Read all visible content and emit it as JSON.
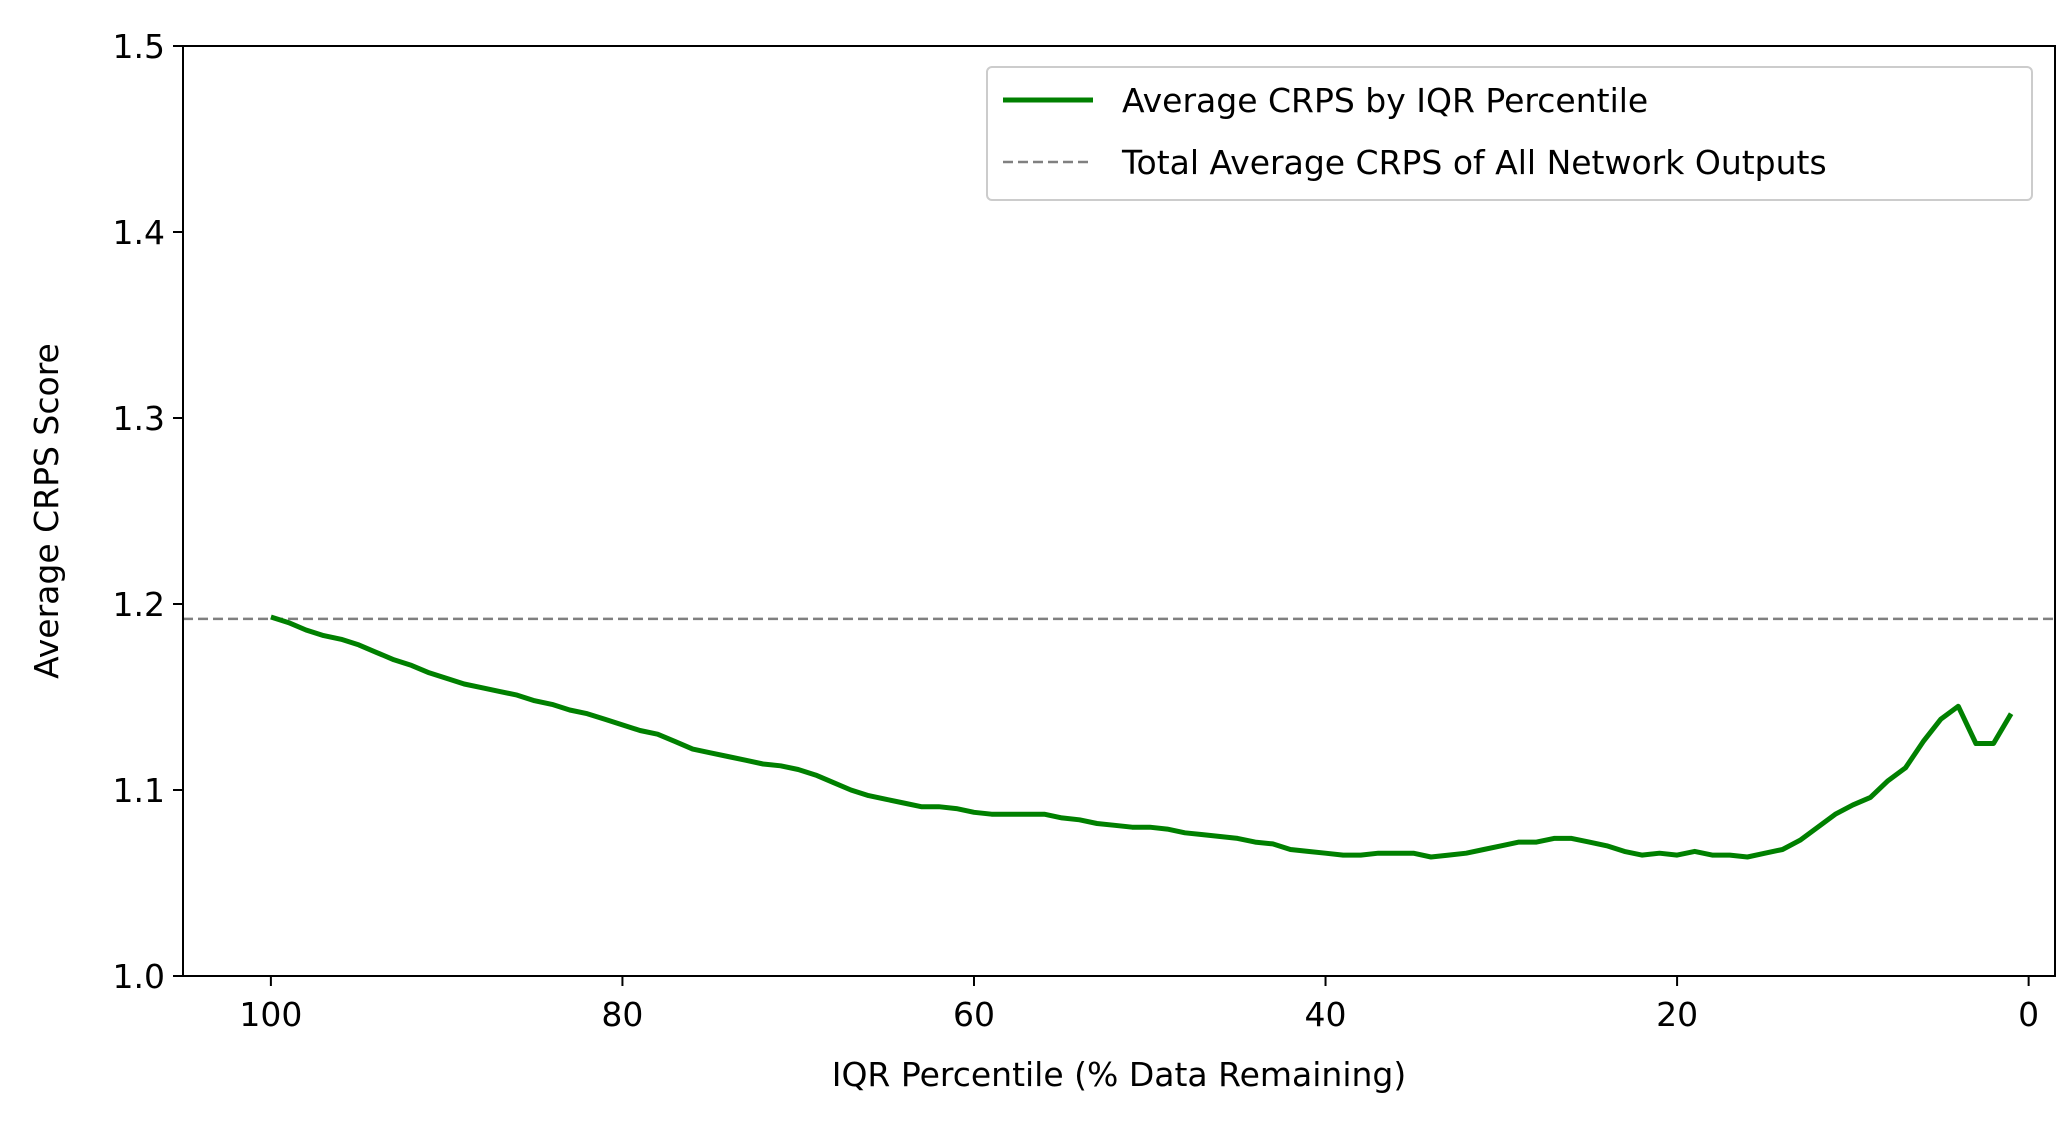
{
  "chart_data": {
    "type": "line",
    "title": "",
    "xlabel": "IQR Percentile (% Data Remaining)",
    "ylabel": "Average CRPS Score",
    "xlim": [
      105,
      -1.5
    ],
    "x_inverted": true,
    "ylim": [
      1.0,
      1.5
    ],
    "xticks": [
      100,
      80,
      60,
      40,
      20,
      0
    ],
    "yticks": [
      1.0,
      1.1,
      1.2,
      1.3,
      1.4,
      1.5
    ],
    "xtick_labels": [
      "100",
      "80",
      "60",
      "40",
      "20",
      "0"
    ],
    "ytick_labels": [
      "1.0",
      "1.1",
      "1.2",
      "1.3",
      "1.4",
      "1.5"
    ],
    "grid": false,
    "legend_position": "top-right",
    "series": [
      {
        "name": "Average CRPS by IQR Percentile",
        "color": "#008000",
        "style": "solid",
        "x": [
          100,
          99,
          98,
          97,
          96,
          95,
          94,
          93,
          92,
          91,
          90,
          89,
          88,
          87,
          86,
          85,
          84,
          83,
          82,
          81,
          80,
          79,
          78,
          77,
          76,
          75,
          74,
          73,
          72,
          71,
          70,
          69,
          68,
          67,
          66,
          65,
          64,
          63,
          62,
          61,
          60,
          59,
          58,
          57,
          56,
          55,
          54,
          53,
          52,
          51,
          50,
          49,
          48,
          47,
          46,
          45,
          44,
          43,
          42,
          41,
          40,
          39,
          38,
          37,
          36,
          35,
          34,
          33,
          32,
          31,
          30,
          29,
          28,
          27,
          26,
          25,
          24,
          23,
          22,
          21,
          20,
          19,
          18,
          17,
          16,
          15,
          14,
          13,
          12,
          11,
          10,
          9,
          8,
          7,
          6,
          5,
          4,
          3,
          2,
          1
        ],
        "y": [
          1.193,
          1.19,
          1.186,
          1.183,
          1.181,
          1.178,
          1.174,
          1.17,
          1.167,
          1.163,
          1.16,
          1.157,
          1.155,
          1.153,
          1.151,
          1.148,
          1.146,
          1.143,
          1.141,
          1.138,
          1.135,
          1.132,
          1.13,
          1.126,
          1.122,
          1.12,
          1.118,
          1.116,
          1.114,
          1.113,
          1.111,
          1.108,
          1.104,
          1.1,
          1.097,
          1.095,
          1.093,
          1.091,
          1.091,
          1.09,
          1.088,
          1.087,
          1.087,
          1.087,
          1.087,
          1.085,
          1.084,
          1.082,
          1.081,
          1.08,
          1.08,
          1.079,
          1.077,
          1.076,
          1.075,
          1.074,
          1.072,
          1.071,
          1.068,
          1.067,
          1.066,
          1.065,
          1.065,
          1.066,
          1.066,
          1.066,
          1.064,
          1.065,
          1.066,
          1.068,
          1.07,
          1.072,
          1.072,
          1.074,
          1.074,
          1.072,
          1.07,
          1.067,
          1.065,
          1.066,
          1.065,
          1.067,
          1.065,
          1.065,
          1.064,
          1.066,
          1.068,
          1.073,
          1.08,
          1.087,
          1.092,
          1.096,
          1.105,
          1.112,
          1.126,
          1.138,
          1.145,
          1.125,
          1.125,
          1.141
        ]
      },
      {
        "name": "Total Average CRPS of All Network Outputs",
        "color": "#808080",
        "style": "dashed",
        "y_constant": 1.192
      }
    ]
  }
}
